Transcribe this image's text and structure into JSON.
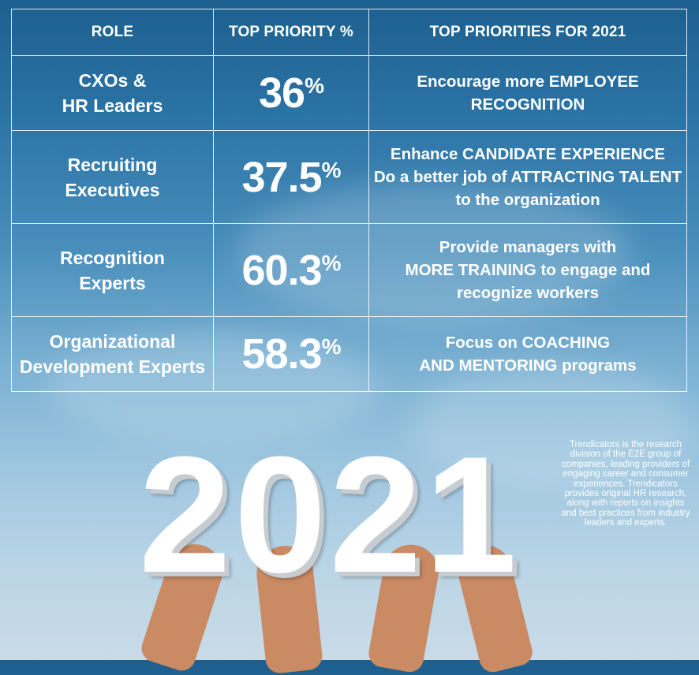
{
  "table": {
    "headers": [
      "ROLE",
      "TOP PRIORITY %",
      "TOP PRIORITIES FOR 2021"
    ],
    "rows": [
      {
        "role": "CXOs &\nHR Leaders",
        "pct": "36",
        "unit": "%",
        "priority": "Encourage more EMPLOYEE\nRECOGNITION"
      },
      {
        "role": "Recruiting\nExecutives",
        "pct": "37.5",
        "unit": "%",
        "priority": "Enhance CANDIDATE EXPERIENCE\nDo a better job of ATTRACTING TALENT\nto the organization"
      },
      {
        "role": "Recognition\nExperts",
        "pct": "60.3",
        "unit": "%",
        "priority": "Provide managers with\nMORE TRAINING to engage and\nrecognize workers"
      },
      {
        "role": "Organizational\nDevelopment Experts",
        "pct": "58.3",
        "unit": "%",
        "priority": "Focus on COACHING\nAND MENTORING programs"
      }
    ]
  },
  "year": "2021",
  "about": "Trendicators is the research division of the E2E group of companies, leading providers of engaging career and consumer experiences. Trendicators provides original HR research, along with reports on insights and best practices from industry leaders and experts.",
  "colors": {
    "sky_top": "#1d5f8f",
    "sky_bottom": "#c9dbe7",
    "text": "#ffffff"
  }
}
